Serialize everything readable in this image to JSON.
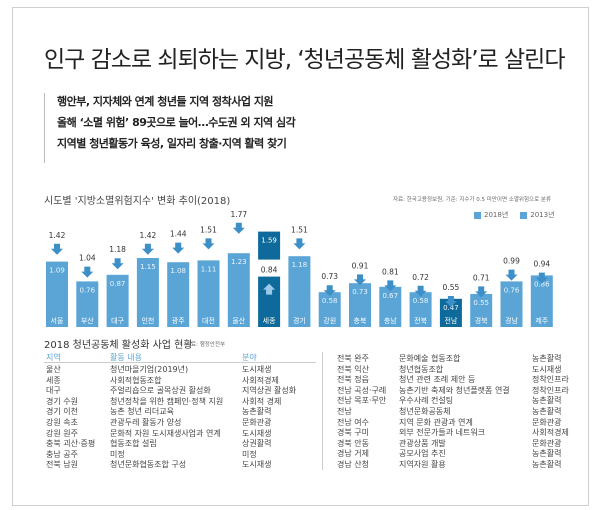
{
  "title": "인구 감소로 쇠퇴하는 지방, ‘청년공동체 활성화’로 살린다",
  "subheads": [
    "행안부, 지자체와 연계 청년들 지역 정착사업 지원",
    "올해 ‘소멸 위험’ 89곳으로 늘어…수도권 외 지역 심각",
    "지역별 청년활동가 육성, 일자리 창출·지역 활력 찾기"
  ],
  "chart_data": {
    "type": "bar",
    "title": "시도별 '지방소멸위험지수' 변화 추이(2018)",
    "source": "자료: 한국고용정보원, 기준: 지수가 0.5 미만이면 소멸위험으로 분류",
    "legend": [
      "2018년",
      "2013년"
    ],
    "categories": [
      "서울",
      "부산",
      "대구",
      "인천",
      "광주",
      "대전",
      "울산",
      "세종",
      "경기",
      "강원",
      "충북",
      "충남",
      "전북",
      "전남",
      "경북",
      "경남",
      "제주"
    ],
    "series": [
      {
        "name": "2018년",
        "values": [
          1.09,
          0.76,
          0.87,
          1.15,
          1.08,
          1.11,
          1.23,
          1.59,
          1.18,
          0.58,
          0.73,
          0.67,
          0.58,
          0.47,
          0.55,
          0.76,
          0.86
        ]
      },
      {
        "name": "2013년",
        "values": [
          1.42,
          1.04,
          1.18,
          1.42,
          1.44,
          1.51,
          1.77,
          0.84,
          1.51,
          0.73,
          0.91,
          0.81,
          0.72,
          0.55,
          0.71,
          0.99,
          0.94
        ]
      }
    ],
    "highlight": [
      "세종",
      "전남"
    ],
    "colors": {
      "bar": "#5aa5d6",
      "highlight": "#0e6a9a",
      "arrow": "#3d8fc8"
    }
  },
  "table": {
    "title": "2018 청년공동체 활성화 사업 현황",
    "source": "자료: 행정안전부",
    "headers": [
      "지역",
      "활동 내용",
      "분야"
    ],
    "left": [
      [
        "울산",
        "청년마을기업(2019년)",
        "도시재생"
      ],
      [
        "세종",
        "사회적협동조합",
        "사회적경제"
      ],
      [
        "대구",
        "주얼리숍으로 골목상권 활성화",
        "지역상권 활성화"
      ],
      [
        "경기 수원",
        "청년정착을 위한 캠페인·정책 지원",
        "사회적 경제"
      ],
      [
        "경기 이천",
        "농촌 청년 리더교육",
        "농촌활력"
      ],
      [
        "강원 속초",
        "관광두레 활동가 양성",
        "문화관광"
      ],
      [
        "강원 원주",
        "문화적 자원 도시재생사업과 연계",
        "도시재생"
      ],
      [
        "충북 괴산·증평",
        "협동조합 설립",
        "상권활력"
      ],
      [
        "충남 공주",
        "미정",
        "미정"
      ],
      [
        "전북 남원",
        "청년문화협동조합 구성",
        "도시재생"
      ]
    ],
    "right": [
      [
        "전북 완주",
        "문화예술 협동조합",
        "농촌활력"
      ],
      [
        "전북 익산",
        "청년협동조합",
        "도시재생"
      ],
      [
        "전북 정읍",
        "청년 관련 조례 제안 등",
        "정착인프라"
      ],
      [
        "전남 곡성·구례",
        "농촌기반 축제와 청년플랫폼 연결",
        "정착인프라"
      ],
      [
        "전남 목포·무안",
        "우수사례 컨설팅",
        "농촌활력"
      ],
      [
        "전남",
        "청년문화공동체",
        "농촌활력"
      ],
      [
        "전남 여수",
        "지역 문화 관광과 연계",
        "문화관광"
      ],
      [
        "경북 구미",
        "외부 전문가들과 네트워크",
        "사회적경제"
      ],
      [
        "경북 안동",
        "관광상품 개발",
        "문화관광"
      ],
      [
        "경남 거제",
        "공모사업 추진",
        "농촌활력"
      ],
      [
        "경남 산청",
        "지역자원 활용",
        "농촌활력"
      ]
    ]
  }
}
